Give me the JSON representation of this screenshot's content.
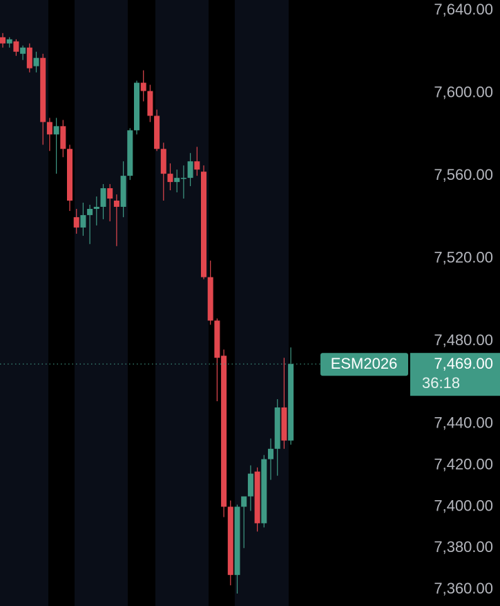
{
  "chart_data": {
    "type": "candlestick",
    "symbol": "ESM2026",
    "countdown": "36:18",
    "last_price": {
      "value": 7469,
      "label": "7,469.00"
    },
    "up_color": "#3f9a85",
    "down_color": "#e2474e",
    "categories": [
      null,
      null,
      null,
      null,
      null,
      null,
      null,
      null,
      null,
      null,
      null,
      null,
      null,
      null,
      null,
      null,
      null,
      null,
      null,
      null,
      null,
      null,
      null,
      null,
      null,
      null,
      null,
      null,
      null,
      null,
      null,
      null,
      null,
      null,
      null,
      null,
      null,
      null,
      null,
      null,
      null,
      null,
      null,
      null
    ],
    "open": [
      7627,
      7624,
      7625,
      7619,
      7622,
      7613,
      7617,
      7586,
      7580,
      7584,
      7573,
      7540,
      7535,
      7541,
      7544,
      7545,
      7554,
      7548,
      7545,
      7560,
      7582,
      7605,
      7601,
      7589,
      7573,
      7561,
      7557,
      7559,
      7559,
      7567,
      7562,
      7511,
      7490,
      7473,
      7400,
      7367,
      7400,
      7405,
      7417,
      7392,
      7423,
      7428,
      7448,
      7432
    ],
    "high": [
      7629,
      7627,
      7626,
      7623,
      7624,
      7620,
      7619,
      7588,
      7588,
      7587,
      7575,
      7544,
      7547,
      7546,
      7550,
      7556,
      7556,
      7551,
      7567,
      7583,
      7606,
      7611,
      7604,
      7592,
      7576,
      7566,
      7563,
      7565,
      7571,
      7574,
      7565,
      7519,
      7491,
      7476,
      7403,
      7401,
      7404,
      7420,
      7419,
      7425,
      7433,
      7452,
      7472,
      7477
    ],
    "low": [
      7622,
      7622,
      7618,
      7616,
      7610,
      7610,
      7575,
      7572,
      7561,
      7569,
      7543,
      7532,
      7531,
      7527,
      7536,
      7539,
      7538,
      7526,
      7540,
      7558,
      7580,
      7596,
      7586,
      7572,
      7548,
      7553,
      7552,
      7549,
      7555,
      7560,
      7510,
      7488,
      7451,
      7395,
      7362,
      7358,
      7380,
      7398,
      7388,
      7390,
      7413,
      7415,
      7428,
      7430
    ],
    "close": [
      7624,
      7626,
      7620,
      7622,
      7612,
      7617,
      7586,
      7580,
      7584,
      7573,
      7548,
      7535,
      7541,
      7544,
      7545,
      7554,
      7549,
      7545,
      7560,
      7582,
      7605,
      7601,
      7589,
      7573,
      7561,
      7557,
      7559,
      7559,
      7567,
      7563,
      7511,
      7490,
      7472,
      7400,
      7367,
      7400,
      7405,
      7416,
      7392,
      7423,
      7428,
      7448,
      7432,
      7469
    ],
    "ylim": [
      7352,
      7645
    ],
    "yticks": [
      {
        "value": 7640,
        "label": "7,640.00"
      },
      {
        "value": 7600,
        "label": "7,600.00"
      },
      {
        "value": 7560,
        "label": "7,560.00"
      },
      {
        "value": 7520,
        "label": "7,520.00"
      },
      {
        "value": 7480,
        "label": "7,480.00"
      },
      {
        "value": 7440,
        "label": "7,440.00"
      },
      {
        "value": 7420,
        "label": "7,420.00"
      },
      {
        "value": 7400,
        "label": "7,400.00"
      },
      {
        "value": 7380,
        "label": "7,380.00"
      },
      {
        "value": 7360,
        "label": "7,360.00"
      }
    ]
  }
}
